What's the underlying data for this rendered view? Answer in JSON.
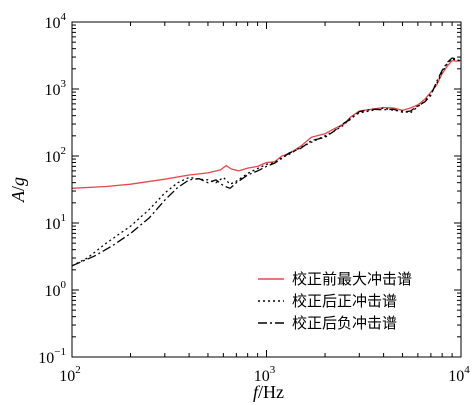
{
  "chart_data": {
    "type": "line",
    "xscale": "log",
    "yscale": "log",
    "xlim": [
      100,
      10000
    ],
    "ylim": [
      0.1,
      10000
    ],
    "x_ticks": [
      {
        "base": "10",
        "exp": "2"
      },
      {
        "base": "10",
        "exp": "3"
      },
      {
        "base": "10",
        "exp": "4"
      }
    ],
    "y_ticks": [
      {
        "base": "10",
        "exp": "4"
      },
      {
        "base": "10",
        "exp": "3"
      },
      {
        "base": "10",
        "exp": "2"
      },
      {
        "base": "10",
        "exp": "1"
      },
      {
        "base": "10",
        "exp": "0"
      },
      {
        "base": "10",
        "exp": "−1"
      }
    ],
    "xlabel": {
      "var": "f",
      "unit": "/Hz"
    },
    "ylabel": {
      "var": "A",
      "sep": "/",
      "unit": "g"
    },
    "grid": false,
    "legend_position": "bottom-right",
    "series": [
      {
        "name": "校正前最大冲击谱",
        "color": "#e8474a",
        "style": "solid",
        "points": [
          [
            100,
            33
          ],
          [
            150,
            35
          ],
          [
            200,
            38
          ],
          [
            300,
            45
          ],
          [
            400,
            52
          ],
          [
            500,
            56
          ],
          [
            580,
            62
          ],
          [
            620,
            72
          ],
          [
            660,
            64
          ],
          [
            720,
            60
          ],
          [
            800,
            66
          ],
          [
            900,
            70
          ],
          [
            1000,
            80
          ],
          [
            1100,
            82
          ],
          [
            1200,
            100
          ],
          [
            1300,
            108
          ],
          [
            1500,
            140
          ],
          [
            1700,
            190
          ],
          [
            2000,
            215
          ],
          [
            2200,
            250
          ],
          [
            2500,
            300
          ],
          [
            2700,
            380
          ],
          [
            3000,
            470
          ],
          [
            3500,
            500
          ],
          [
            4000,
            530
          ],
          [
            4500,
            520
          ],
          [
            5000,
            480
          ],
          [
            5500,
            520
          ],
          [
            6000,
            580
          ],
          [
            6500,
            700
          ],
          [
            7000,
            900
          ],
          [
            7500,
            1150
          ],
          [
            8000,
            1700
          ],
          [
            8500,
            2200
          ],
          [
            9000,
            2650
          ],
          [
            9500,
            2600
          ],
          [
            10000,
            2700
          ]
        ]
      },
      {
        "name": "校正后正冲击谱",
        "color": "#000000",
        "style": "dotted",
        "points": [
          [
            100,
            2.3
          ],
          [
            120,
            3
          ],
          [
            150,
            5
          ],
          [
            200,
            9
          ],
          [
            250,
            16
          ],
          [
            300,
            28
          ],
          [
            350,
            40
          ],
          [
            400,
            48
          ],
          [
            450,
            45
          ],
          [
            500,
            44
          ],
          [
            550,
            40
          ],
          [
            600,
            48
          ],
          [
            650,
            38
          ],
          [
            700,
            42
          ],
          [
            800,
            55
          ],
          [
            900,
            65
          ],
          [
            1000,
            75
          ],
          [
            1100,
            80
          ],
          [
            1200,
            95
          ],
          [
            1300,
            105
          ],
          [
            1500,
            135
          ],
          [
            1700,
            160
          ],
          [
            2000,
            200
          ],
          [
            2200,
            230
          ],
          [
            2500,
            290
          ],
          [
            2700,
            370
          ],
          [
            3000,
            440
          ],
          [
            3500,
            480
          ],
          [
            4000,
            520
          ],
          [
            4500,
            480
          ],
          [
            5000,
            470
          ],
          [
            5500,
            440
          ],
          [
            6000,
            550
          ],
          [
            6500,
            650
          ],
          [
            7000,
            850
          ],
          [
            7500,
            1200
          ],
          [
            8000,
            1800
          ],
          [
            8500,
            2400
          ],
          [
            9000,
            2800
          ],
          [
            9500,
            2700
          ],
          [
            10000,
            2600
          ]
        ]
      },
      {
        "name": "校正后负冲击谱",
        "color": "#000000",
        "style": "dashdot",
        "points": [
          [
            100,
            2.3
          ],
          [
            130,
            3.2
          ],
          [
            160,
            4.5
          ],
          [
            200,
            7
          ],
          [
            250,
            12
          ],
          [
            300,
            22
          ],
          [
            350,
            34
          ],
          [
            400,
            44
          ],
          [
            450,
            46
          ],
          [
            500,
            40
          ],
          [
            550,
            44
          ],
          [
            600,
            36
          ],
          [
            650,
            33
          ],
          [
            700,
            40
          ],
          [
            800,
            52
          ],
          [
            900,
            60
          ],
          [
            1000,
            70
          ],
          [
            1100,
            78
          ],
          [
            1200,
            92
          ],
          [
            1300,
            110
          ],
          [
            1500,
            130
          ],
          [
            1700,
            170
          ],
          [
            2000,
            190
          ],
          [
            2200,
            230
          ],
          [
            2500,
            310
          ],
          [
            2700,
            350
          ],
          [
            3000,
            460
          ],
          [
            3500,
            500
          ],
          [
            4000,
            490
          ],
          [
            4500,
            500
          ],
          [
            5000,
            450
          ],
          [
            5500,
            470
          ],
          [
            6000,
            560
          ],
          [
            6500,
            640
          ],
          [
            7000,
            800
          ],
          [
            7500,
            1300
          ],
          [
            8000,
            1900
          ],
          [
            8500,
            2500
          ],
          [
            9000,
            2900
          ],
          [
            9500,
            2800
          ],
          [
            10000,
            2500
          ]
        ]
      }
    ]
  }
}
